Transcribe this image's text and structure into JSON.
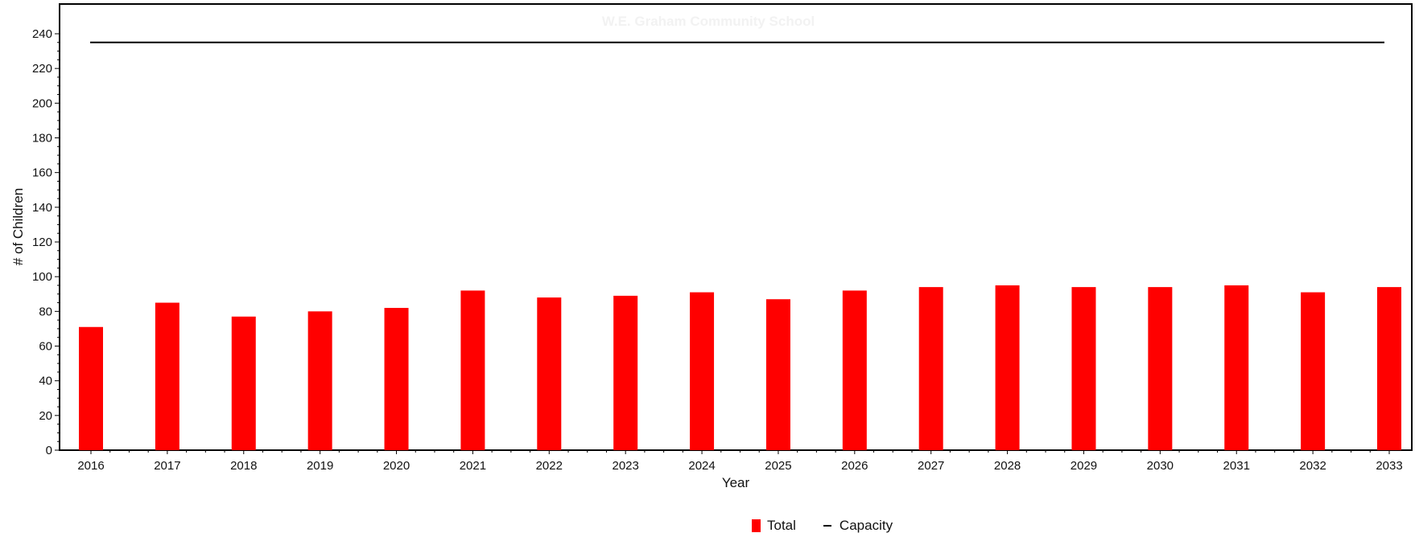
{
  "chart_data": {
    "type": "bar",
    "xlabel": "Year",
    "ylabel": "# of Children",
    "ylim": [
      0,
      240
    ],
    "yticks": [
      0,
      20,
      40,
      60,
      80,
      100,
      120,
      140,
      160,
      180,
      200,
      220,
      240
    ],
    "categories": [
      "2016",
      "2017",
      "2018",
      "2019",
      "2020",
      "2021",
      "2022",
      "2023",
      "2024",
      "2025",
      "2026",
      "2027",
      "2028",
      "2029",
      "2030",
      "2031",
      "2032",
      "2033"
    ],
    "series": [
      {
        "name": "Total",
        "kind": "bar",
        "color": "#ff0000",
        "values": [
          71,
          85,
          77,
          80,
          82,
          92,
          88,
          89,
          91,
          87,
          92,
          94,
          95,
          94,
          94,
          95,
          91,
          94
        ]
      },
      {
        "name": "Capacity",
        "kind": "line",
        "color": "#000000",
        "value": 235
      }
    ],
    "legend_position": "bottom-center",
    "grid": false,
    "faded_background_text": [
      "W.E. Graham Community School"
    ]
  }
}
